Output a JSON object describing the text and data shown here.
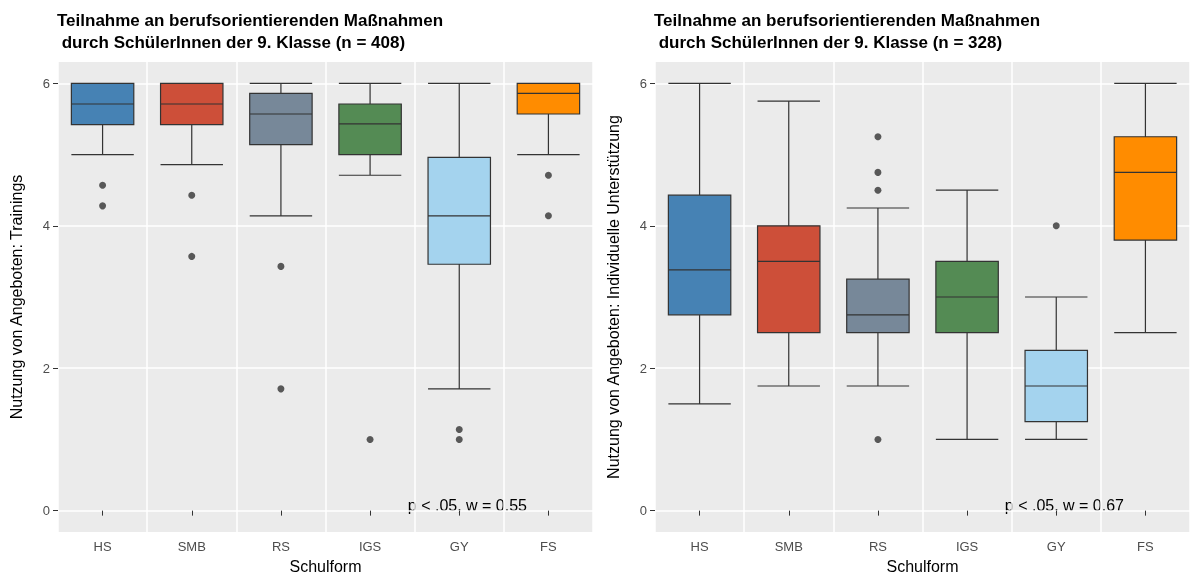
{
  "chart_data": [
    {
      "type": "box",
      "title": "Teilnahme an berufsorientierenden Maßnahmen\n durch SchülerInnen der 9. Klasse (n = 408)",
      "xlabel": "Schulform",
      "ylabel": "Nutzung von Angeboten: Trainings",
      "categories": [
        "HS",
        "SMB",
        "RS",
        "IGS",
        "GY",
        "FS"
      ],
      "colors": [
        "#4682b4",
        "#cd4f39",
        "#778899",
        "#548b54",
        "#a4d3ee",
        "#ff8c00"
      ],
      "boxes": [
        {
          "low": 5.0,
          "q1": 5.42,
          "median": 5.71,
          "q3": 6,
          "high": 6,
          "outliers": [
            4.57,
            4.28
          ]
        },
        {
          "low": 4.86,
          "q1": 5.42,
          "median": 5.71,
          "q3": 6,
          "high": 6,
          "outliers": [
            4.43,
            3.57
          ]
        },
        {
          "low": 4.14,
          "q1": 5.14,
          "median": 5.57,
          "q3": 5.86,
          "high": 6,
          "outliers": [
            3.43,
            1.71
          ]
        },
        {
          "low": 4.71,
          "q1": 5.0,
          "median": 5.43,
          "q3": 5.71,
          "high": 6,
          "outliers": [
            1.0
          ]
        },
        {
          "low": 1.71,
          "q1": 3.46,
          "median": 4.14,
          "q3": 4.96,
          "high": 6,
          "outliers": [
            1.14,
            1.0
          ]
        },
        {
          "low": 5.0,
          "q1": 5.57,
          "median": 5.86,
          "q3": 6,
          "high": 6,
          "outliers": [
            4.71,
            4.14
          ]
        }
      ],
      "ylim": [
        -0.3,
        6.3
      ],
      "yticks": [
        0,
        2,
        4,
        6
      ],
      "grid": true,
      "annotations": [
        "p < .05, w = 0.55"
      ]
    },
    {
      "type": "box",
      "title": "Teilnahme an berufsorientierenden Maßnahmen\n durch SchülerInnen der 9. Klasse (n = 328)",
      "xlabel": "Schulform",
      "ylabel": "Nutzung von Angeboten: Individuelle Unterstützung",
      "categories": [
        "HS",
        "SMB",
        "RS",
        "IGS",
        "GY",
        "FS"
      ],
      "colors": [
        "#4682b4",
        "#cd4f39",
        "#778899",
        "#548b54",
        "#a4d3ee",
        "#ff8c00"
      ],
      "boxes": [
        {
          "low": 1.5,
          "q1": 2.75,
          "median": 3.38,
          "q3": 4.43,
          "high": 6
        },
        {
          "low": 1.75,
          "q1": 2.5,
          "median": 3.5,
          "q3": 4.0,
          "high": 5.75
        },
        {
          "low": 1.75,
          "q1": 2.5,
          "median": 2.75,
          "q3": 3.25,
          "high": 4.25,
          "outliers": [
            5.25,
            4.75,
            4.5,
            1.0
          ]
        },
        {
          "low": 1.0,
          "q1": 2.5,
          "median": 3.0,
          "q3": 3.5,
          "high": 4.5
        },
        {
          "low": 1.0,
          "q1": 1.25,
          "median": 1.75,
          "q3": 2.25,
          "high": 3.0,
          "outliers": [
            4.0
          ]
        },
        {
          "low": 2.5,
          "q1": 3.8,
          "median": 4.75,
          "q3": 5.25,
          "high": 6
        }
      ],
      "ylim": [
        -0.3,
        6.3
      ],
      "yticks": [
        0,
        2,
        4,
        6
      ],
      "grid": true,
      "annotations": [
        "p < .05, w = 0.67"
      ]
    }
  ]
}
